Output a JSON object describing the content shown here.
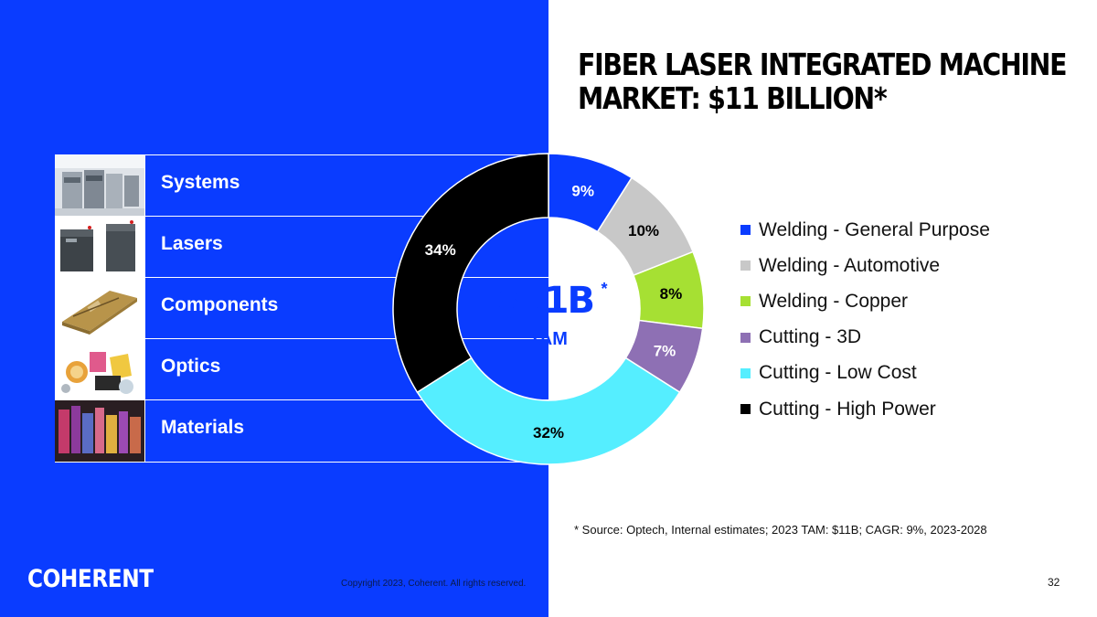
{
  "slide": {
    "title_line1": "FIBER LASER INTEGRATED MACHINE",
    "title_line2": "MARKET: $11 BILLION*",
    "source_note": "* Source: Optech, Internal estimates; 2023 TAM: $11B; CAGR: 9%, 2023-2028",
    "copyright": "Copyright 2023, Coherent. All rights reserved.",
    "page_number": "32",
    "logo_text": "COHERENT"
  },
  "segments": [
    {
      "label": "Systems",
      "icon": "systems-photo"
    },
    {
      "label": "Lasers",
      "icon": "lasers-photo"
    },
    {
      "label": "Components",
      "icon": "components-photo"
    },
    {
      "label": "Optics",
      "icon": "optics-photo"
    },
    {
      "label": "Materials",
      "icon": "materials-photo"
    }
  ],
  "colors": {
    "brand_blue": "#0a3cff",
    "white": "#ffffff"
  },
  "chart_data": {
    "type": "pie",
    "variant": "donut",
    "center_value": "$11B",
    "center_asterisk": "*",
    "center_label": "TAM",
    "legend_position": "right",
    "slices": [
      {
        "name": "Welding - General Purpose",
        "value": 9,
        "label": "9%",
        "color": "#0a3cff",
        "label_color": "#ffffff"
      },
      {
        "name": "Welding - Automotive",
        "value": 10,
        "label": "10%",
        "color": "#c8c8c8",
        "label_color": "#000000"
      },
      {
        "name": "Welding - Copper",
        "value": 8,
        "label": "8%",
        "color": "#a6e033",
        "label_color": "#000000"
      },
      {
        "name": "Cutting - 3D",
        "value": 7,
        "label": "7%",
        "color": "#8e70b4",
        "label_color": "#ffffff"
      },
      {
        "name": "Cutting - Low Cost",
        "value": 32,
        "label": "32%",
        "color": "#55eeff",
        "label_color": "#000000"
      },
      {
        "name": "Cutting - High Power",
        "value": 34,
        "label": "34%",
        "color": "#000000",
        "label_color": "#ffffff"
      }
    ]
  }
}
